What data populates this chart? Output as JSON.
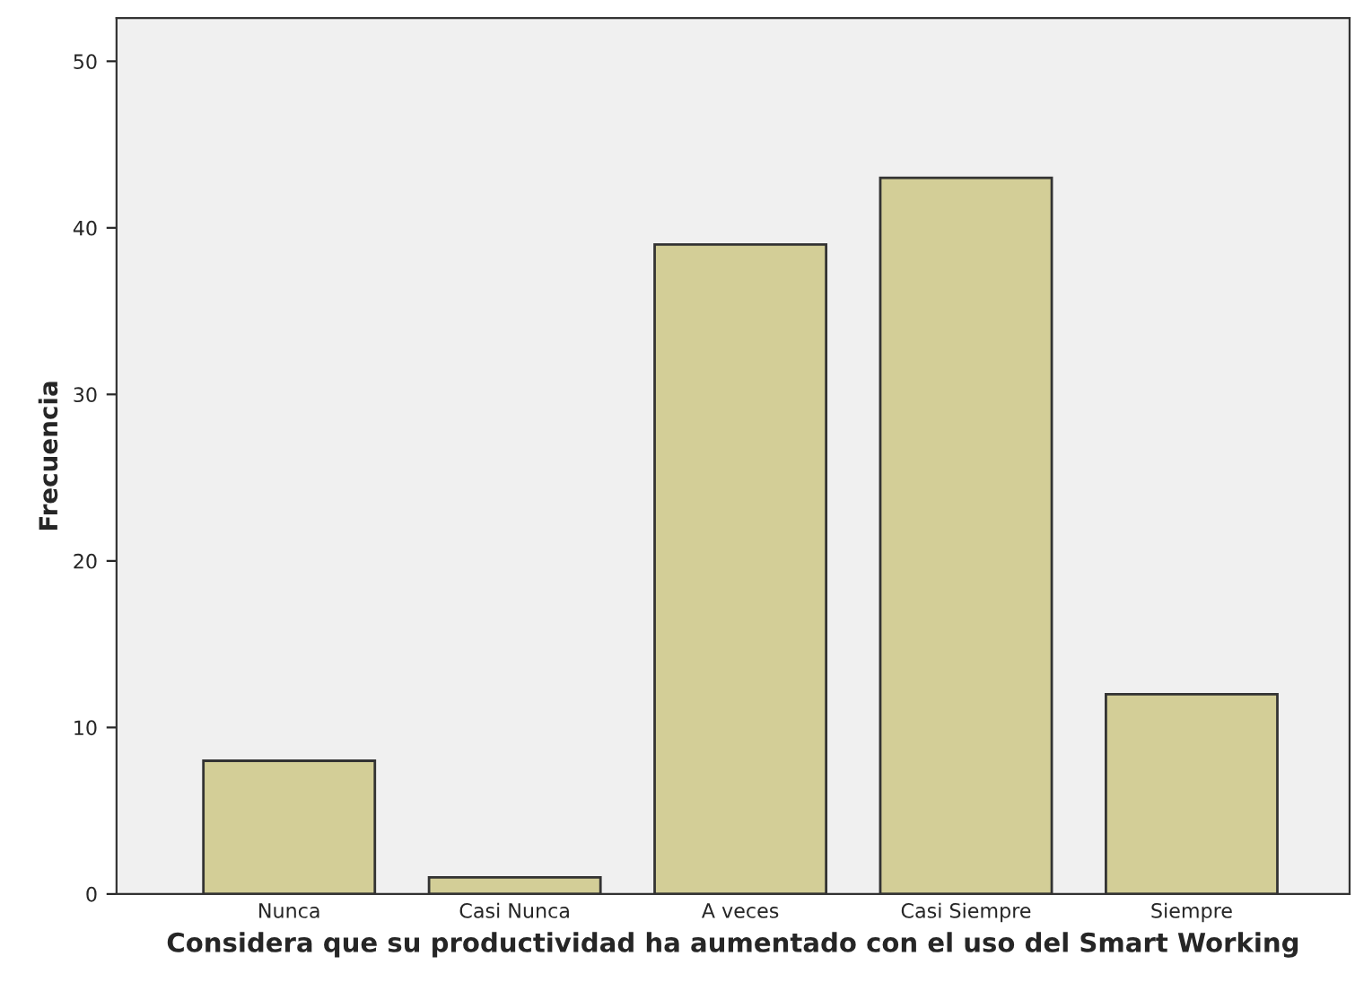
{
  "chart_data": {
    "type": "bar",
    "xlabel": "Considera que su productividad ha aumentado con el uso del Smart Working",
    "ylabel": "Frecuencia",
    "categories": [
      "Nunca",
      "Casi Nunca",
      "A veces",
      "Casi Siempre",
      "Siempre"
    ],
    "values": [
      8,
      1,
      39,
      43,
      12
    ],
    "color": "#d3ce97",
    "ylim": [
      0,
      52.6
    ],
    "yticks": [
      0,
      10,
      20,
      30,
      40,
      50
    ],
    "grid": false
  }
}
